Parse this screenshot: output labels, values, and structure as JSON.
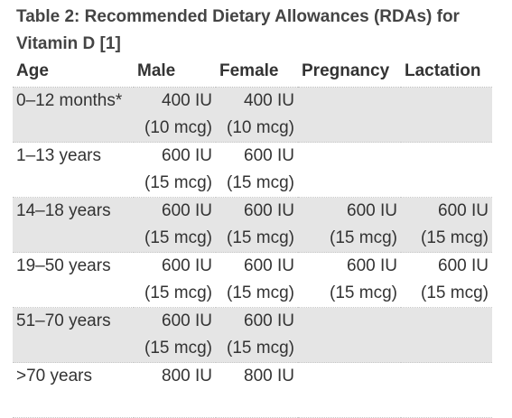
{
  "caption": "Table 2: Recommended Dietary Allowances (RDAs) for Vitamin D [1]",
  "headers": [
    "Age",
    "Male",
    "Female",
    "Pregnancy",
    "Lactation"
  ],
  "rows": [
    {
      "age": "0–12 months*",
      "male": [
        "400 IU",
        "(10 mcg)"
      ],
      "female": [
        "400 IU",
        "(10 mcg)"
      ],
      "pregnancy": [
        "",
        ""
      ],
      "lactation": [
        "",
        ""
      ]
    },
    {
      "age": "1–13 years",
      "male": [
        "600 IU",
        "(15 mcg)"
      ],
      "female": [
        "600 IU",
        "(15 mcg)"
      ],
      "pregnancy": [
        "",
        ""
      ],
      "lactation": [
        "",
        ""
      ]
    },
    {
      "age": "14–18 years",
      "male": [
        "600 IU",
        "(15 mcg)"
      ],
      "female": [
        "600 IU",
        "(15 mcg)"
      ],
      "pregnancy": [
        "600 IU",
        "(15 mcg)"
      ],
      "lactation": [
        "600 IU",
        "(15 mcg)"
      ]
    },
    {
      "age": "19–50 years",
      "male": [
        "600 IU",
        "(15 mcg)"
      ],
      "female": [
        "600 IU",
        "(15 mcg)"
      ],
      "pregnancy": [
        "600 IU",
        "(15 mcg)"
      ],
      "lactation": [
        "600 IU",
        "(15 mcg)"
      ]
    },
    {
      "age": "51–70 years",
      "male": [
        "600 IU",
        "(15 mcg)"
      ],
      "female": [
        "600 IU",
        "(15 mcg)"
      ],
      "pregnancy": [
        "",
        ""
      ],
      "lactation": [
        "",
        ""
      ]
    },
    {
      "age": ">70 years",
      "male": [
        "800 IU",
        ""
      ],
      "female": [
        "800 IU",
        ""
      ],
      "pregnancy": [
        "",
        ""
      ],
      "lactation": [
        "",
        ""
      ]
    }
  ],
  "colors": {
    "shaded_row": "#e5e5e5",
    "text": "#333333"
  }
}
